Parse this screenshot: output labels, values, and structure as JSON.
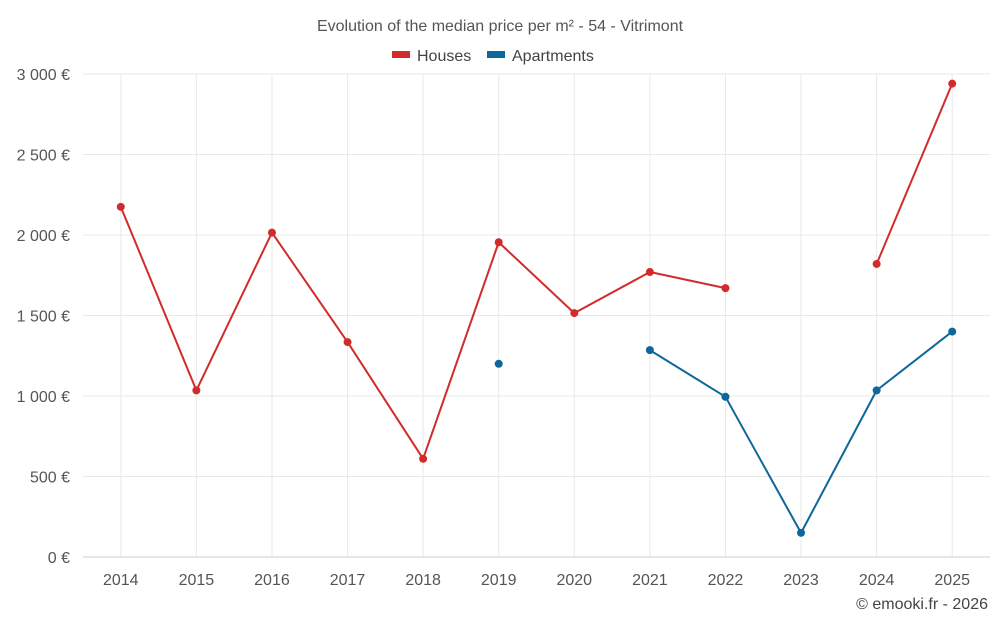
{
  "chart_data": {
    "type": "line",
    "title": "Evolution of the median price per m² - 54 - Vitrimont",
    "categories": [
      "2014",
      "2015",
      "2016",
      "2017",
      "2018",
      "2019",
      "2020",
      "2021",
      "2022",
      "2023",
      "2024",
      "2025"
    ],
    "series": [
      {
        "name": "Houses",
        "color": "#d22b2b",
        "values": [
          2175,
          1035,
          2015,
          1335,
          610,
          1955,
          1515,
          1770,
          1670,
          null,
          1820,
          2940
        ]
      },
      {
        "name": "Apartments",
        "color": "#0e6699",
        "values": [
          null,
          null,
          null,
          null,
          null,
          1200,
          null,
          1285,
          995,
          150,
          1035,
          1400
        ]
      }
    ],
    "ylim": [
      0,
      3000
    ],
    "yticks": [
      0,
      500,
      1000,
      1500,
      2000,
      2500,
      3000
    ],
    "ytick_labels": [
      "0 €",
      "500 €",
      "1 000 €",
      "1 500 €",
      "2 000 €",
      "2 500 €",
      "3 000 €"
    ],
    "xlabel": "",
    "ylabel": "",
    "grid": true,
    "legend_position": "top-center"
  },
  "credit": "© emooki.fr - 2026"
}
